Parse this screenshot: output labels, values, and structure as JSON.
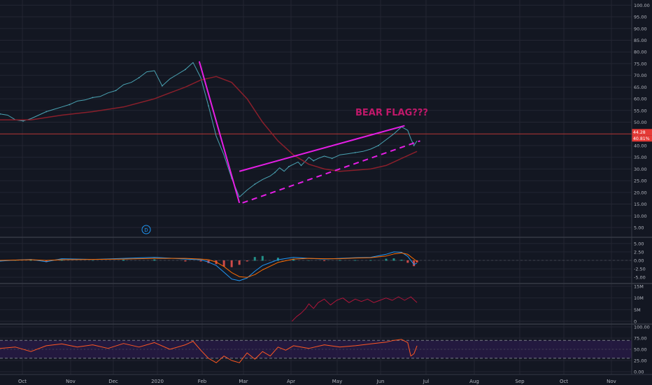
{
  "theme": {
    "background": "#131722",
    "grid": "#232632",
    "separator": "#363a45",
    "axis_text": "#b2b5be",
    "price": "#4aa3b3",
    "ma": "#8a1f2b",
    "trendline": "#e61ee6",
    "annotation": "#c0186a",
    "macd": "#2196f3",
    "signal": "#ff6d00",
    "hist_up": "#26a69a",
    "hist_down": "#ef5350",
    "volume_line": "#b0153a",
    "rsi": "#ff5722",
    "rsi_band": "#2a1b4a",
    "last_price_tag": "#e53935"
  },
  "annotation": "BEAR FLAG???",
  "marker_label": "D",
  "x_axis": {
    "labels": [
      "Oct",
      "Nov",
      "Dec",
      "2020",
      "Feb",
      "Mar",
      "Apr",
      "May",
      "Jun",
      "Jul",
      "Aug",
      "Sep",
      "Oct",
      "Nov"
    ]
  },
  "price_tags": [
    "44.28",
    "40.81%"
  ],
  "chart_data": [
    {
      "type": "line",
      "pane": "price",
      "y_axis_labels": [
        "100.00",
        "95.00",
        "90.00",
        "85.00",
        "80.00",
        "75.00",
        "70.00",
        "65.00",
        "60.00",
        "55.00",
        "50.00",
        "45.00",
        "40.00",
        "35.00",
        "30.00",
        "25.00",
        "20.00",
        "15.00",
        "10.00",
        "5.00"
      ],
      "ylim": [
        2,
        101
      ],
      "x_range": [
        0,
        272
      ],
      "series": [
        {
          "role": "price",
          "x": [
            0,
            5,
            10,
            15,
            20,
            25,
            30,
            35,
            40,
            45,
            50,
            55,
            60,
            65,
            70,
            75,
            80,
            85,
            90,
            95,
            100,
            105,
            110,
            115,
            120,
            125,
            130,
            135,
            140,
            145,
            150,
            155,
            160,
            165,
            170,
            175,
            178,
            181,
            184,
            187,
            190,
            193,
            195,
            198,
            200,
            203,
            206,
            210,
            215,
            220,
            225,
            230,
            235,
            240,
            245,
            250,
            255,
            260,
            264,
            266,
            268,
            270
          ],
          "values": [
            53.5,
            53,
            51,
            50.5,
            51.5,
            53,
            54.5,
            55.5,
            56.5,
            57.5,
            59,
            59.5,
            60.5,
            61,
            62.5,
            63.5,
            66,
            67,
            69,
            71.5,
            72,
            65.5,
            68.5,
            70.5,
            72.5,
            75.5,
            69,
            57,
            44,
            36,
            26,
            18,
            21,
            23.5,
            25.5,
            27,
            28.5,
            30.5,
            29,
            31,
            32,
            33,
            31.5,
            33.5,
            35,
            33.5,
            34.5,
            35.5,
            34.5,
            36,
            36.5,
            37,
            37.5,
            38.5,
            40,
            42.5,
            45,
            48,
            46.5,
            43,
            40,
            42
          ]
        },
        {
          "role": "moving-average",
          "x": [
            0,
            20,
            40,
            60,
            80,
            100,
            110,
            120,
            130,
            140,
            150,
            160,
            170,
            180,
            190,
            200,
            210,
            220,
            230,
            240,
            250,
            255,
            260,
            265,
            270
          ],
          "values": [
            51,
            51,
            53,
            54.5,
            56.5,
            60,
            62.5,
            65,
            68,
            69.5,
            67,
            60,
            50,
            42,
            36,
            32,
            30,
            29,
            29.5,
            30,
            31.5,
            33,
            34.5,
            36,
            37.5
          ]
        }
      ],
      "trendlines": [
        {
          "style": "solid",
          "points": [
            [
              129,
              76
            ],
            [
              155,
              15.5
            ]
          ]
        },
        {
          "style": "solid",
          "points": [
            [
              155,
              29
            ],
            [
              262,
              48.5
            ]
          ]
        },
        {
          "style": "dashed",
          "points": [
            [
              157,
              15.5
            ],
            [
              272,
              42
            ]
          ]
        }
      ],
      "last_price_line": 45
    },
    {
      "type": "line",
      "pane": "macd",
      "y_axis_labels": [
        "5.00",
        "2.50",
        "0.00",
        "-2.50",
        "-5.00"
      ],
      "ylim": [
        -6,
        6
      ],
      "x_range": [
        0,
        272
      ],
      "series": [
        {
          "role": "macd",
          "x": [
            0,
            10,
            20,
            30,
            40,
            60,
            80,
            100,
            120,
            130,
            135,
            140,
            145,
            150,
            155,
            160,
            165,
            170,
            180,
            190,
            200,
            210,
            220,
            230,
            240,
            250,
            255,
            260,
            264,
            268,
            270
          ],
          "values": [
            -0.2,
            0.1,
            0.3,
            -0.4,
            0.5,
            0.3,
            0.6,
            0.9,
            0.4,
            0.2,
            -0.5,
            -1.5,
            -3.5,
            -5.5,
            -6,
            -5.2,
            -3.2,
            -1.5,
            0.2,
            0.9,
            0.6,
            0.4,
            0.6,
            0.8,
            0.9,
            1.8,
            2.5,
            2.4,
            1.2,
            -1.2,
            -0.8
          ]
        },
        {
          "role": "signal",
          "x": [
            0,
            10,
            20,
            30,
            40,
            60,
            80,
            100,
            120,
            130,
            135,
            140,
            145,
            150,
            155,
            160,
            165,
            170,
            180,
            190,
            200,
            210,
            220,
            230,
            240,
            250,
            255,
            260,
            264,
            268,
            270
          ],
          "values": [
            0,
            0.1,
            0.2,
            0,
            0.2,
            0.3,
            0.4,
            0.6,
            0.6,
            0.4,
            0.2,
            -0.5,
            -1.8,
            -3.6,
            -4.8,
            -5,
            -4.2,
            -2.8,
            -0.6,
            0.4,
            0.6,
            0.5,
            0.5,
            0.7,
            0.8,
            1.3,
            1.9,
            2.2,
            1.8,
            0.4,
            -0.3
          ]
        }
      ]
    },
    {
      "type": "line",
      "pane": "volume",
      "y_axis_labels": [
        "15M",
        "10M",
        "5M",
        "0"
      ],
      "ylim": [
        0,
        15
      ],
      "x_range": [
        0,
        272
      ],
      "series": [
        {
          "role": "volume",
          "x": [
            189,
            192,
            195,
            198,
            200,
            203,
            206,
            210,
            214,
            218,
            222,
            226,
            230,
            234,
            238,
            242,
            246,
            250,
            254,
            258,
            262,
            266,
            270
          ],
          "values": [
            0,
            2,
            3.5,
            5.5,
            7.5,
            5.5,
            8,
            9.5,
            7,
            9,
            10,
            8,
            9.5,
            8.5,
            9.5,
            8,
            9,
            10,
            9,
            10.5,
            9,
            10.5,
            8
          ]
        }
      ]
    },
    {
      "type": "line",
      "pane": "rsi",
      "y_axis_labels": [
        "100.00",
        "75.00",
        "50.00",
        "25.00",
        "0.00"
      ],
      "ylim": [
        0,
        100
      ],
      "x_range": [
        0,
        272
      ],
      "bands": [
        30,
        70
      ],
      "series": [
        {
          "role": "rsi",
          "x": [
            0,
            10,
            20,
            30,
            40,
            50,
            60,
            70,
            80,
            90,
            100,
            110,
            120,
            125,
            130,
            135,
            140,
            145,
            150,
            155,
            160,
            165,
            170,
            175,
            180,
            185,
            190,
            200,
            210,
            220,
            230,
            240,
            250,
            255,
            260,
            264,
            266,
            268,
            270
          ],
          "values": [
            52,
            55,
            45,
            58,
            62,
            55,
            60,
            52,
            63,
            55,
            65,
            50,
            60,
            68,
            48,
            30,
            20,
            35,
            25,
            20,
            42,
            28,
            45,
            35,
            55,
            48,
            58,
            52,
            60,
            55,
            58,
            62,
            66,
            70,
            72,
            65,
            35,
            40,
            58
          ]
        }
      ]
    }
  ]
}
